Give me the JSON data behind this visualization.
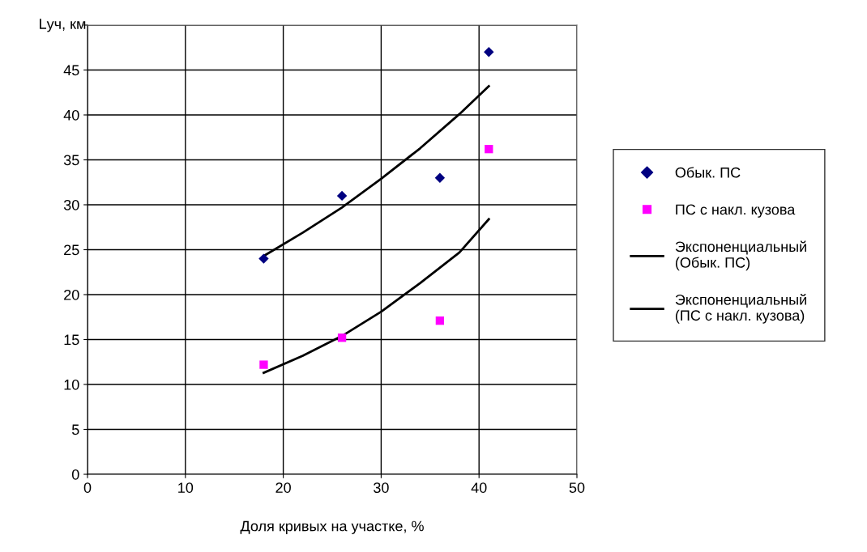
{
  "chart_data": {
    "type": "scatter",
    "xlabel": "Доля кривых на участке, %",
    "ylabel": "Lуч, км",
    "xlim": [
      0,
      50
    ],
    "xticks": [
      0,
      10,
      20,
      30,
      40,
      50
    ],
    "ylim": [
      0,
      50
    ],
    "yticks": [
      0,
      5,
      10,
      15,
      20,
      25,
      30,
      35,
      40,
      45,
      {
        "value": 50,
        "label": null
      }
    ],
    "grid": true,
    "legend": "right",
    "series": [
      {
        "name": "Обык. ПС",
        "marker": "diamond",
        "color": "#000080",
        "x": [
          18,
          26,
          36,
          41
        ],
        "values": [
          24,
          31,
          33,
          47
        ]
      },
      {
        "name": "ПС с накл. кузова",
        "marker": "square",
        "color": "#ff00ff",
        "x": [
          18,
          26,
          36,
          41
        ],
        "values": [
          12.2,
          15.2,
          17.1,
          36.2
        ]
      },
      {
        "name": "Экспоненциальный\n(Обык. ПС)",
        "type": "line",
        "marker": "none",
        "color": "#000000",
        "x": [
          18,
          22,
          26,
          30,
          34,
          38,
          41
        ],
        "values": [
          24.3,
          26.9,
          29.7,
          32.9,
          36.3,
          40.1,
          43.2
        ]
      },
      {
        "name": "Экспоненциальный\n(ПС с накл. кузова)",
        "type": "line",
        "marker": "none",
        "color": "#000000",
        "x": [
          18,
          22,
          26,
          30,
          34,
          38,
          41
        ],
        "values": [
          11.3,
          13.2,
          15.4,
          18.1,
          21.3,
          24.7,
          28.4
        ]
      }
    ]
  }
}
